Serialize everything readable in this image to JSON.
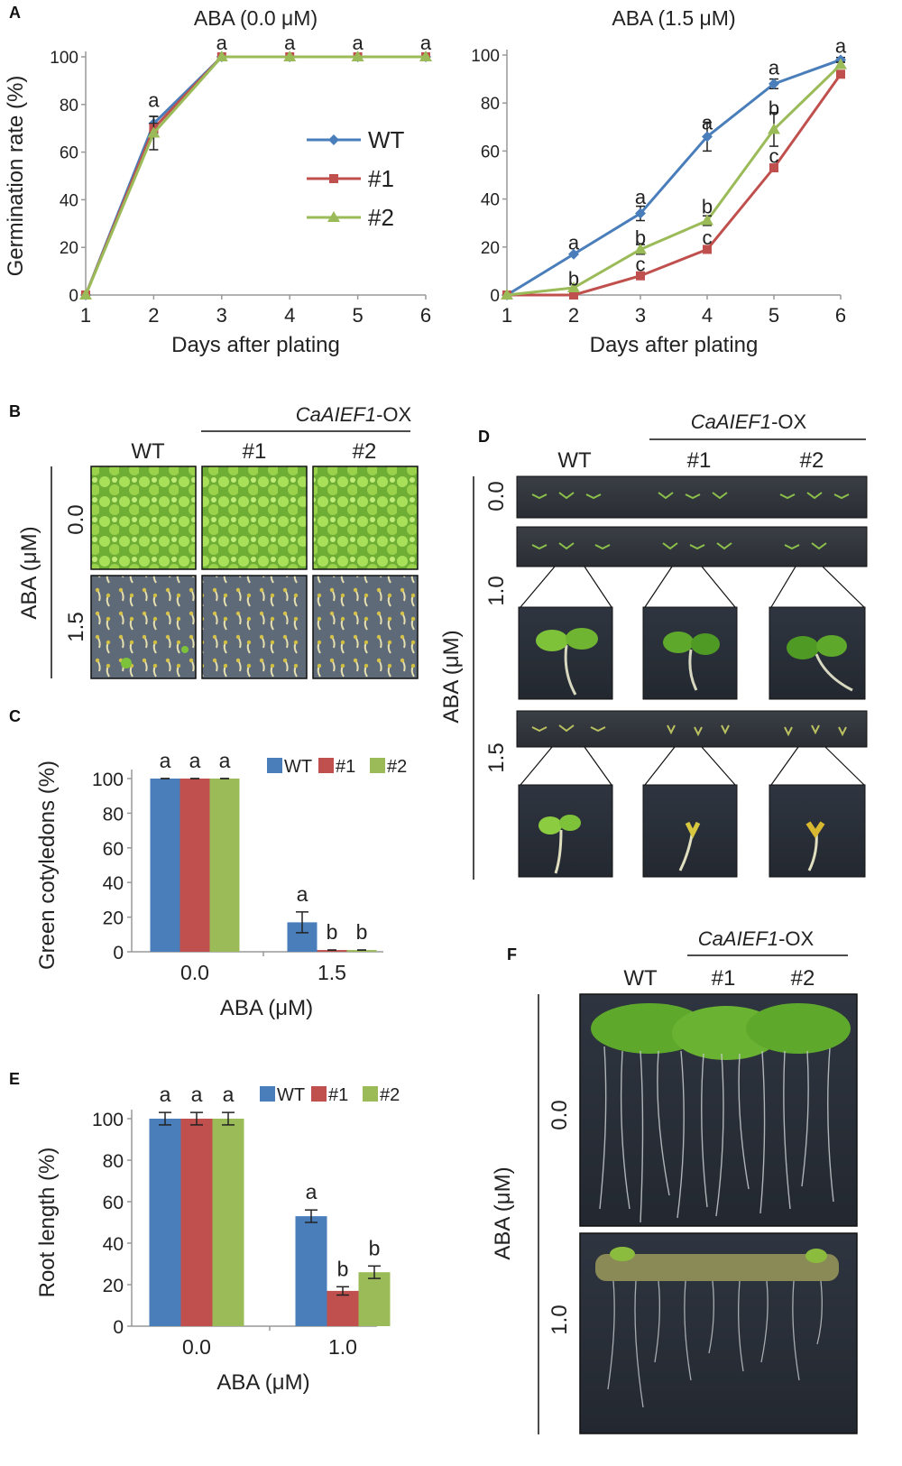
{
  "panel_labels": {
    "A": "A",
    "B": "B",
    "C": "C",
    "D": "D",
    "E": "E",
    "F": "F"
  },
  "colors": {
    "wt": "#4a7ebb",
    "l1": "#c0504d",
    "l2": "#9bbb59"
  },
  "legend": [
    "WT",
    "#1",
    "#2"
  ],
  "photo_headers": {
    "transgene_italic": "CaAIEF1",
    "transgene_suffix": "-OX",
    "wt": "WT",
    "line1": "#1",
    "line2": "#2",
    "aba_axis": "ABA (μM)",
    "b_rows": [
      "0.0",
      "1.5"
    ],
    "d_rows": [
      "0.0",
      "1.0",
      "1.5"
    ],
    "f_rows": [
      "0.0",
      "1.0"
    ]
  },
  "chart_data": [
    {
      "id": "A1",
      "type": "line",
      "title": "ABA (0.0  μM)",
      "xlabel": "Days after plating",
      "ylabel": "Germination rate (%)",
      "x": [
        1,
        2,
        3,
        4,
        5,
        6
      ],
      "xticks": [
        "1",
        "2",
        "3",
        "4",
        "5",
        "6"
      ],
      "yticks": [
        "0",
        "20",
        "40",
        "60",
        "80",
        "100"
      ],
      "ylim": [
        0,
        100
      ],
      "series": [
        {
          "name": "WT",
          "values": [
            0,
            72,
            100,
            100,
            100,
            100
          ],
          "err": [
            0,
            3,
            0,
            0,
            0,
            0
          ]
        },
        {
          "name": "#1",
          "values": [
            0,
            70,
            100,
            100,
            100,
            100
          ],
          "err": [
            0,
            2,
            0,
            0,
            0,
            0
          ]
        },
        {
          "name": "#2",
          "values": [
            0,
            68,
            100,
            100,
            100,
            100
          ],
          "err": [
            0,
            7,
            0,
            0,
            0,
            0
          ]
        }
      ],
      "annotations": [
        {
          "x": 2,
          "y": 82,
          "text": "a"
        },
        {
          "x": 3,
          "y": 106,
          "text": "a"
        },
        {
          "x": 4,
          "y": 106,
          "text": "a"
        },
        {
          "x": 5,
          "y": 106,
          "text": "a"
        },
        {
          "x": 6,
          "y": 106,
          "text": "a"
        }
      ],
      "legend_position": "center-right"
    },
    {
      "id": "A2",
      "type": "line",
      "title": "ABA (1.5  μM)",
      "xlabel": "Days after plating",
      "ylabel": "",
      "x": [
        1,
        2,
        3,
        4,
        5,
        6
      ],
      "xticks": [
        "1",
        "2",
        "3",
        "4",
        "5",
        "6"
      ],
      "yticks": [
        "0",
        "20",
        "40",
        "60",
        "80",
        "100"
      ],
      "ylim": [
        0,
        100
      ],
      "series": [
        {
          "name": "WT",
          "values": [
            0,
            17,
            34,
            66,
            88,
            98
          ],
          "err": [
            0,
            0,
            3,
            6,
            2,
            1
          ]
        },
        {
          "name": "#1",
          "values": [
            0,
            0,
            8,
            19,
            53,
            92
          ],
          "err": [
            0,
            0,
            1,
            1,
            1,
            1
          ]
        },
        {
          "name": "#2",
          "values": [
            0,
            3,
            19,
            31,
            69,
            96
          ],
          "err": [
            0,
            0,
            2,
            2,
            7,
            1
          ]
        }
      ],
      "annotations": [
        {
          "x": 2,
          "y": 22,
          "text": "a"
        },
        {
          "x": 2,
          "y": 7,
          "text": "b"
        },
        {
          "x": 3,
          "y": 41,
          "text": "a"
        },
        {
          "x": 3,
          "y": 24,
          "text": "b"
        },
        {
          "x": 3,
          "y": 13,
          "text": "c"
        },
        {
          "x": 4,
          "y": 72,
          "text": "a"
        },
        {
          "x": 4,
          "y": 37,
          "text": "b"
        },
        {
          "x": 4,
          "y": 24,
          "text": "c"
        },
        {
          "x": 5,
          "y": 95,
          "text": "a"
        },
        {
          "x": 5,
          "y": 78,
          "text": "b"
        },
        {
          "x": 5,
          "y": 58,
          "text": "c"
        },
        {
          "x": 6,
          "y": 104,
          "text": "a"
        }
      ]
    },
    {
      "id": "C",
      "type": "bar",
      "xlabel": "ABA (μM)",
      "ylabel": "Green cotyledons (%)",
      "categories": [
        "0.0",
        "1.5"
      ],
      "yticks": [
        "0",
        "20",
        "40",
        "60",
        "80",
        "100"
      ],
      "ylim": [
        0,
        100
      ],
      "series": [
        {
          "name": "WT",
          "values": [
            100,
            17
          ],
          "err": [
            0,
            6
          ]
        },
        {
          "name": "#1",
          "values": [
            100,
            1
          ],
          "err": [
            0,
            0
          ]
        },
        {
          "name": "#2",
          "values": [
            100,
            1
          ],
          "err": [
            0,
            0
          ]
        }
      ],
      "letters": [
        [
          "a",
          "a",
          "a"
        ],
        [
          "a",
          "b",
          "b"
        ]
      ],
      "legend_position": "top-right"
    },
    {
      "id": "E",
      "type": "bar",
      "xlabel": "ABA (μM)",
      "ylabel": "Root length (%)",
      "categories": [
        "0.0",
        "1.0"
      ],
      "yticks": [
        "0",
        "20",
        "40",
        "60",
        "80",
        "100"
      ],
      "ylim": [
        0,
        100
      ],
      "series": [
        {
          "name": "WT",
          "values": [
            100,
            53
          ],
          "err": [
            3,
            3
          ]
        },
        {
          "name": "#1",
          "values": [
            100,
            17
          ],
          "err": [
            3,
            2
          ]
        },
        {
          "name": "#2",
          "values": [
            100,
            26
          ],
          "err": [
            3,
            3
          ]
        }
      ],
      "letters": [
        [
          "a",
          "a",
          "a"
        ],
        [
          "a",
          "b",
          "b"
        ]
      ],
      "legend_position": "top-right"
    }
  ]
}
